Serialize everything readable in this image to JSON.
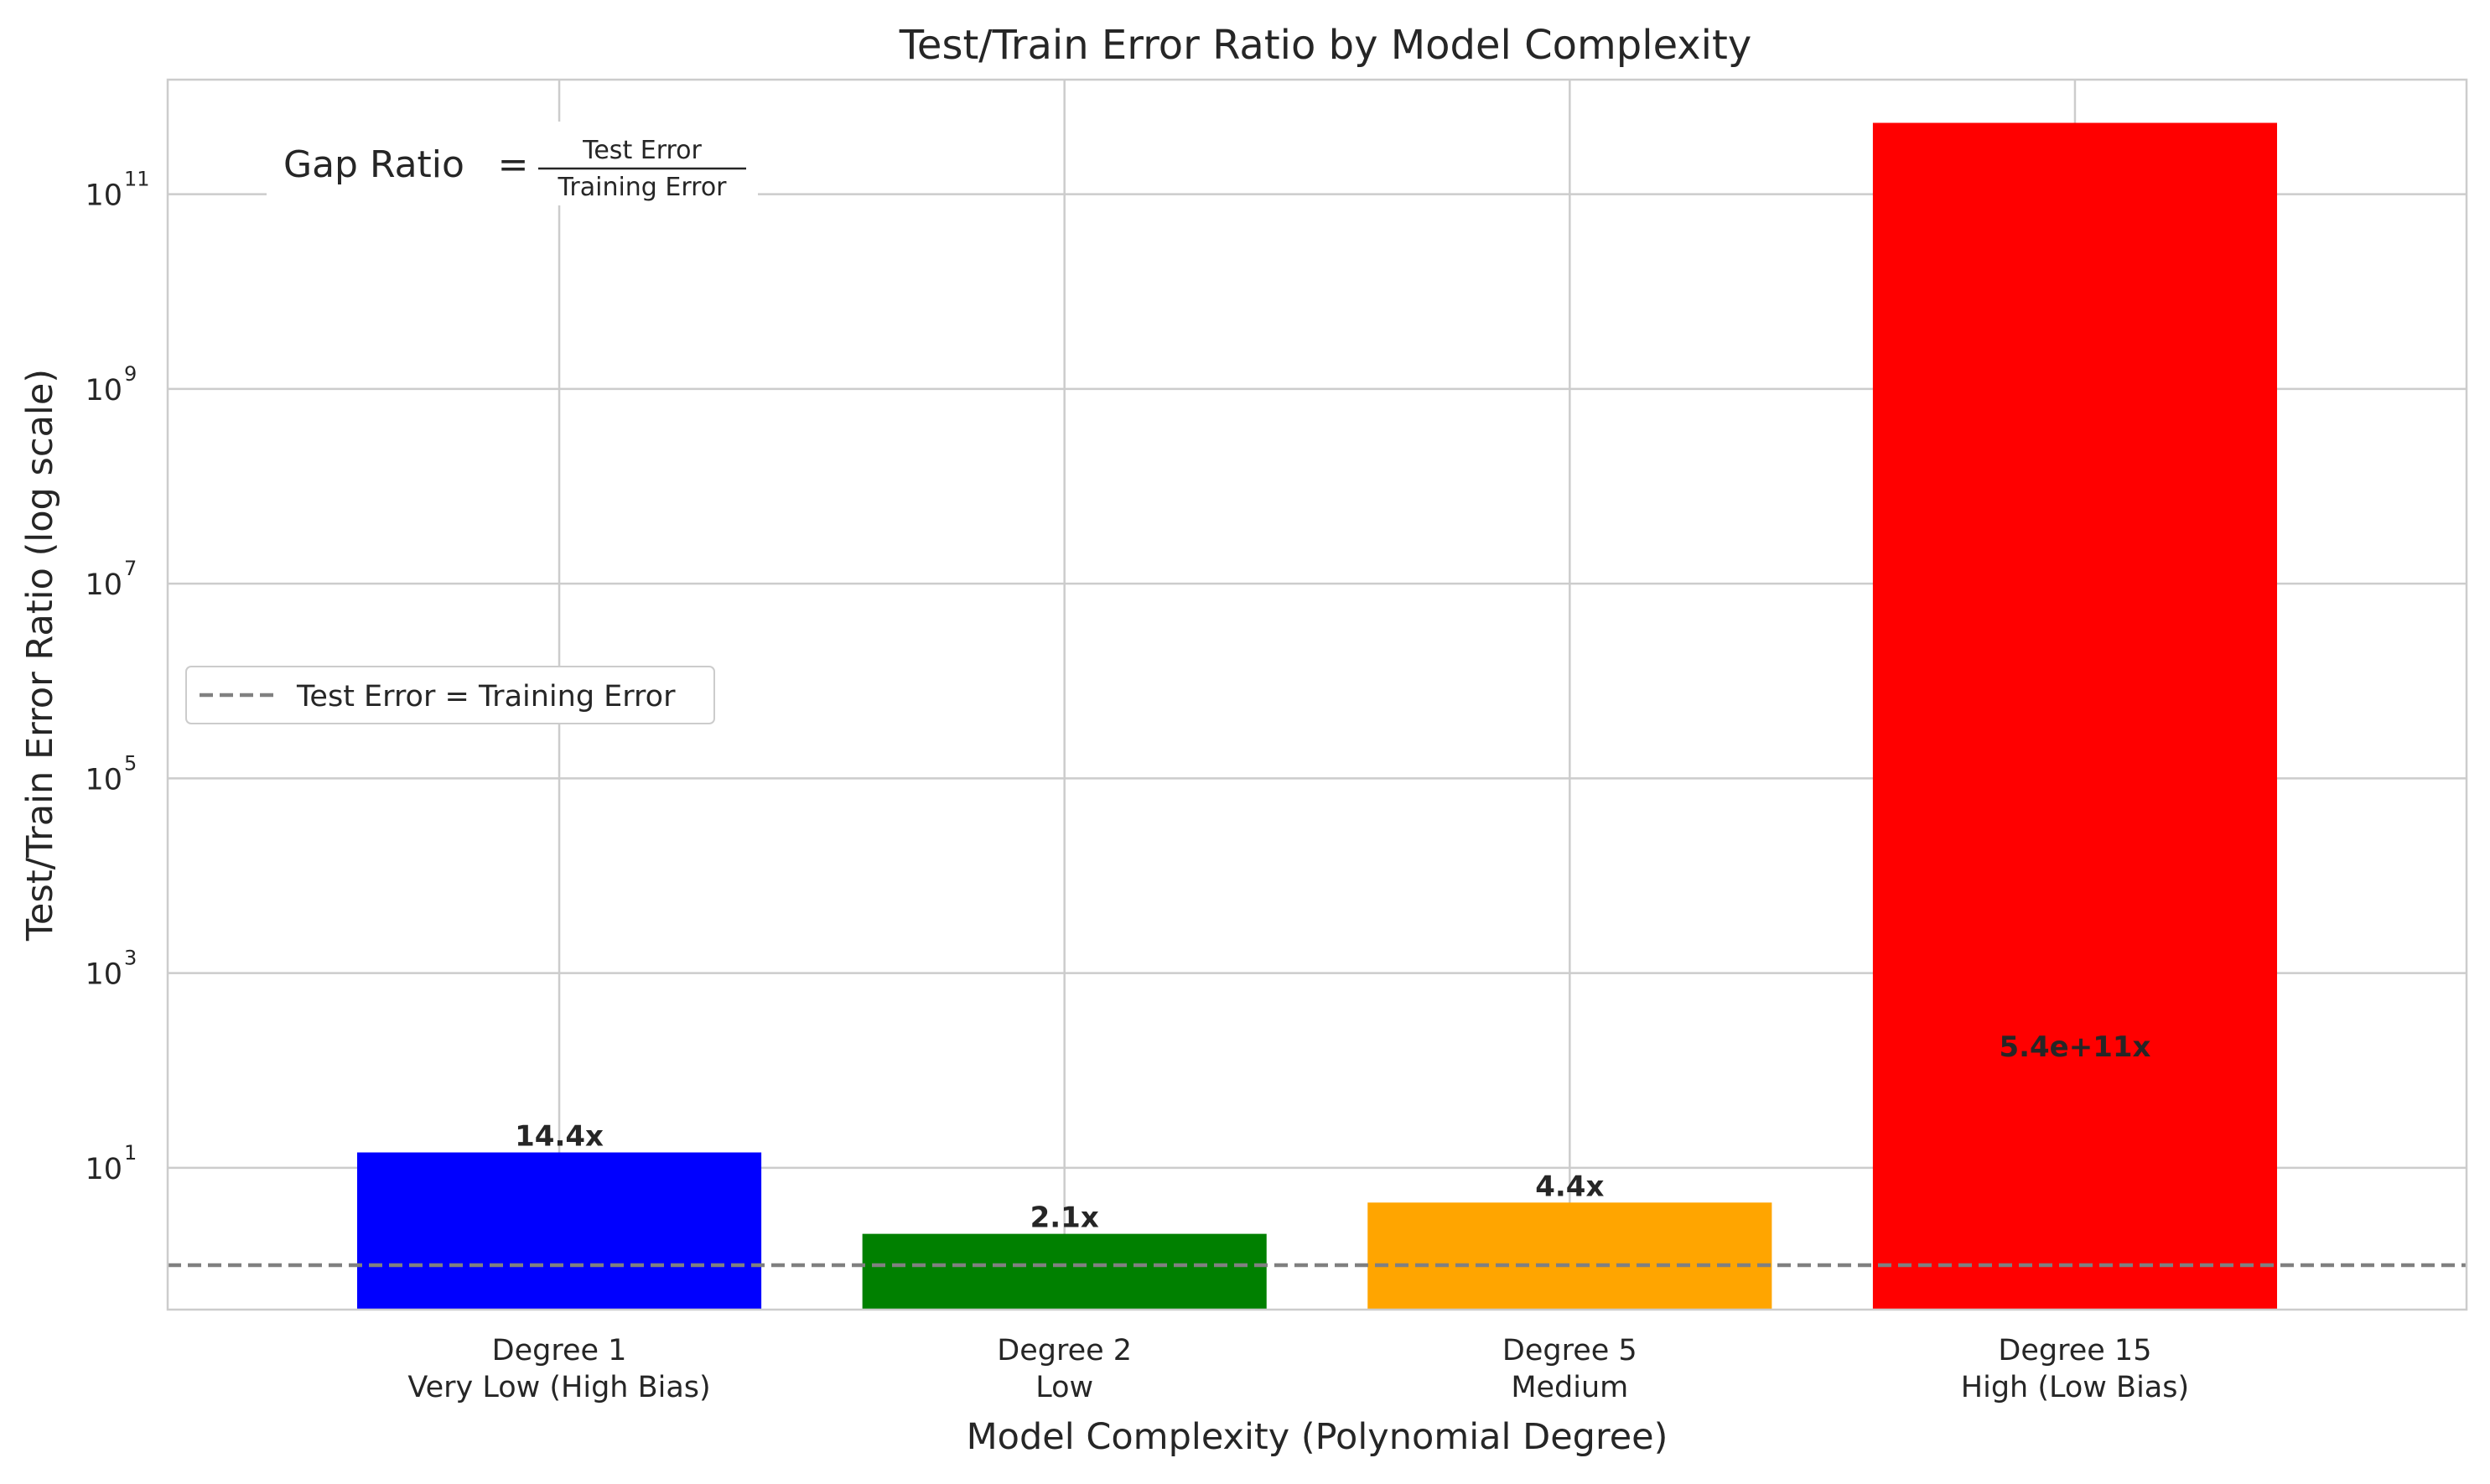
{
  "chart_data": {
    "type": "bar",
    "title": "Test/Train Error Ratio by Model Complexity",
    "xlabel": "Model Complexity (Polynomial Degree)",
    "ylabel": "Test/Train Error Ratio (log scale)",
    "yscale": "log",
    "ylim": [
      0.35,
      1500000000000
    ],
    "ytick_labels": [
      {
        "base": "10",
        "exp": "1",
        "value": 10
      },
      {
        "base": "10",
        "exp": "3",
        "value": 1000
      },
      {
        "base": "10",
        "exp": "5",
        "value": 100000
      },
      {
        "base": "10",
        "exp": "7",
        "value": 10000000
      },
      {
        "base": "10",
        "exp": "9",
        "value": 1000000000
      },
      {
        "base": "10",
        "exp": "11",
        "value": 100000000000
      }
    ],
    "grid": true,
    "categories": [
      {
        "line1": "Degree 1",
        "line2": "Very Low (High Bias)"
      },
      {
        "line1": "Degree 2",
        "line2": "Low"
      },
      {
        "line1": "Degree 5",
        "line2": "Medium"
      },
      {
        "line1": "Degree 15",
        "line2": "High (Low Bias)"
      }
    ],
    "values": [
      14.4,
      2.1,
      4.4,
      540000000000
    ],
    "value_labels": [
      "14.4x",
      "2.1x",
      "4.4x",
      "5.4e+11x"
    ],
    "colors": [
      "#0000ff",
      "#008000",
      "#ffa500",
      "#ff0000"
    ],
    "reference_line": {
      "value": 1,
      "label": "Test Error = Training Error",
      "color": "#808080",
      "style": "dashed"
    },
    "legend_placement": "center-left",
    "annotation": {
      "lhs": "Gap Ratio",
      "eq": "=",
      "numerator": "Test Error",
      "denominator": "Training Error",
      "placement": "top-left"
    }
  }
}
